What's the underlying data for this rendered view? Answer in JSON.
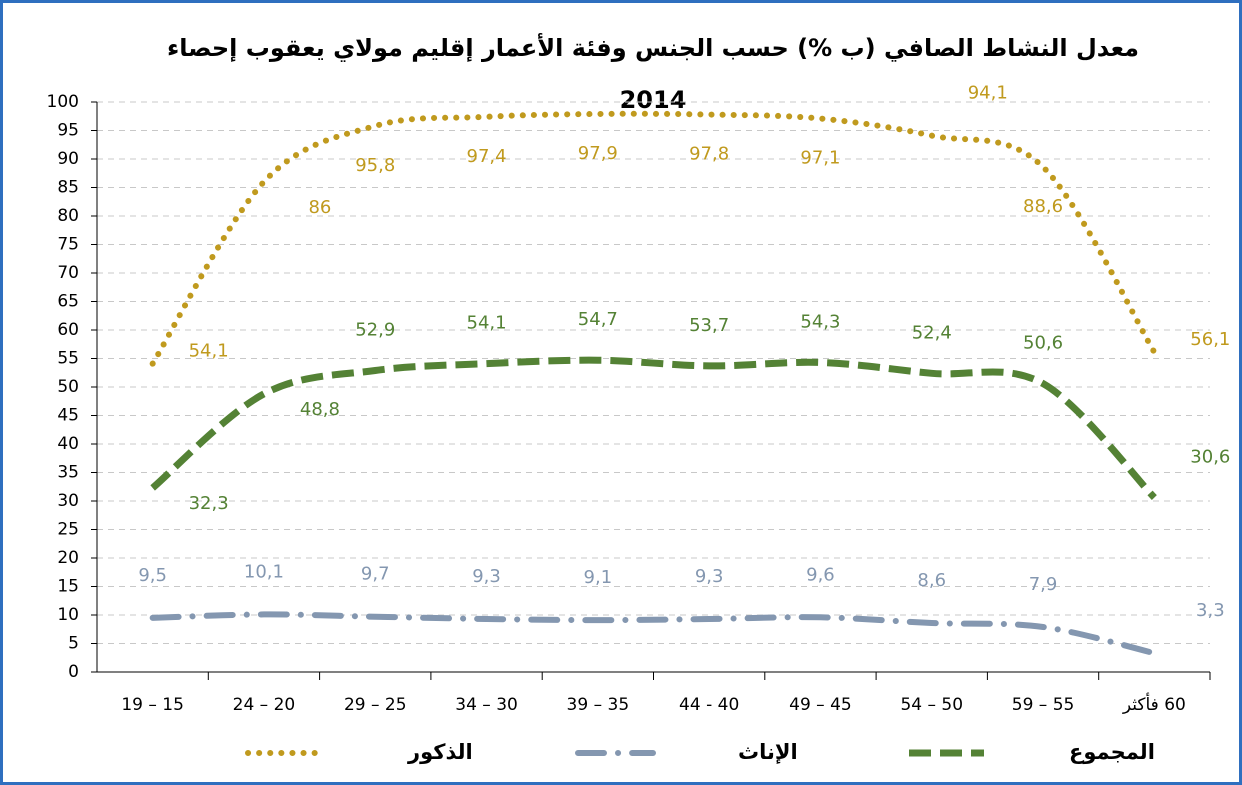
{
  "chart_data": {
    "type": "line",
    "title": "معدل النشاط الصافي (ب %) حسب الجنس وفئة الأعمار إقليم مولاي يعقوب إحصاء",
    "subtitle": "2014",
    "categories": [
      "15 – 19",
      "20 – 24",
      "25 – 29",
      "30 – 34",
      "35 – 39",
      "40 - 44",
      "45 – 49",
      "50 – 54",
      "55 – 59",
      "60 فأكثر"
    ],
    "series": [
      {
        "name": "الذكور",
        "color": "#c09a1e",
        "style": "dotted",
        "values": [
          54.1,
          86,
          95.8,
          97.4,
          97.9,
          97.8,
          97.1,
          94.1,
          88.6,
          56.1
        ],
        "value_labels": [
          "54,1",
          "86",
          "95,8",
          "97,4",
          "97,9",
          "97,8",
          "97,1",
          "94,1",
          "88,6",
          "56,1"
        ]
      },
      {
        "name": "الإناث",
        "color": "#8497b0",
        "style": "dashdot",
        "values": [
          9.5,
          10.1,
          9.7,
          9.3,
          9.1,
          9.3,
          9.6,
          8.6,
          7.9,
          3.3
        ],
        "value_labels": [
          "9,5",
          "10,1",
          "9,7",
          "9,3",
          "9,1",
          "9,3",
          "9,6",
          "8,6",
          "7,9",
          "3,3"
        ]
      },
      {
        "name": "المجموع",
        "color": "#548235",
        "style": "dashed",
        "values": [
          32.3,
          48.8,
          52.9,
          54.1,
          54.7,
          53.7,
          54.3,
          52.4,
          50.6,
          30.6
        ],
        "value_labels": [
          "32,3",
          "48,8",
          "52,9",
          "54,1",
          "54,7",
          "53,7",
          "54,3",
          "52,4",
          "50,6",
          "30,6"
        ]
      }
    ],
    "ylim": [
      0,
      100
    ],
    "yticks": [
      0,
      5,
      10,
      15,
      20,
      25,
      30,
      35,
      40,
      45,
      50,
      55,
      60,
      65,
      70,
      75,
      80,
      85,
      90,
      95,
      100
    ],
    "grid": true
  }
}
